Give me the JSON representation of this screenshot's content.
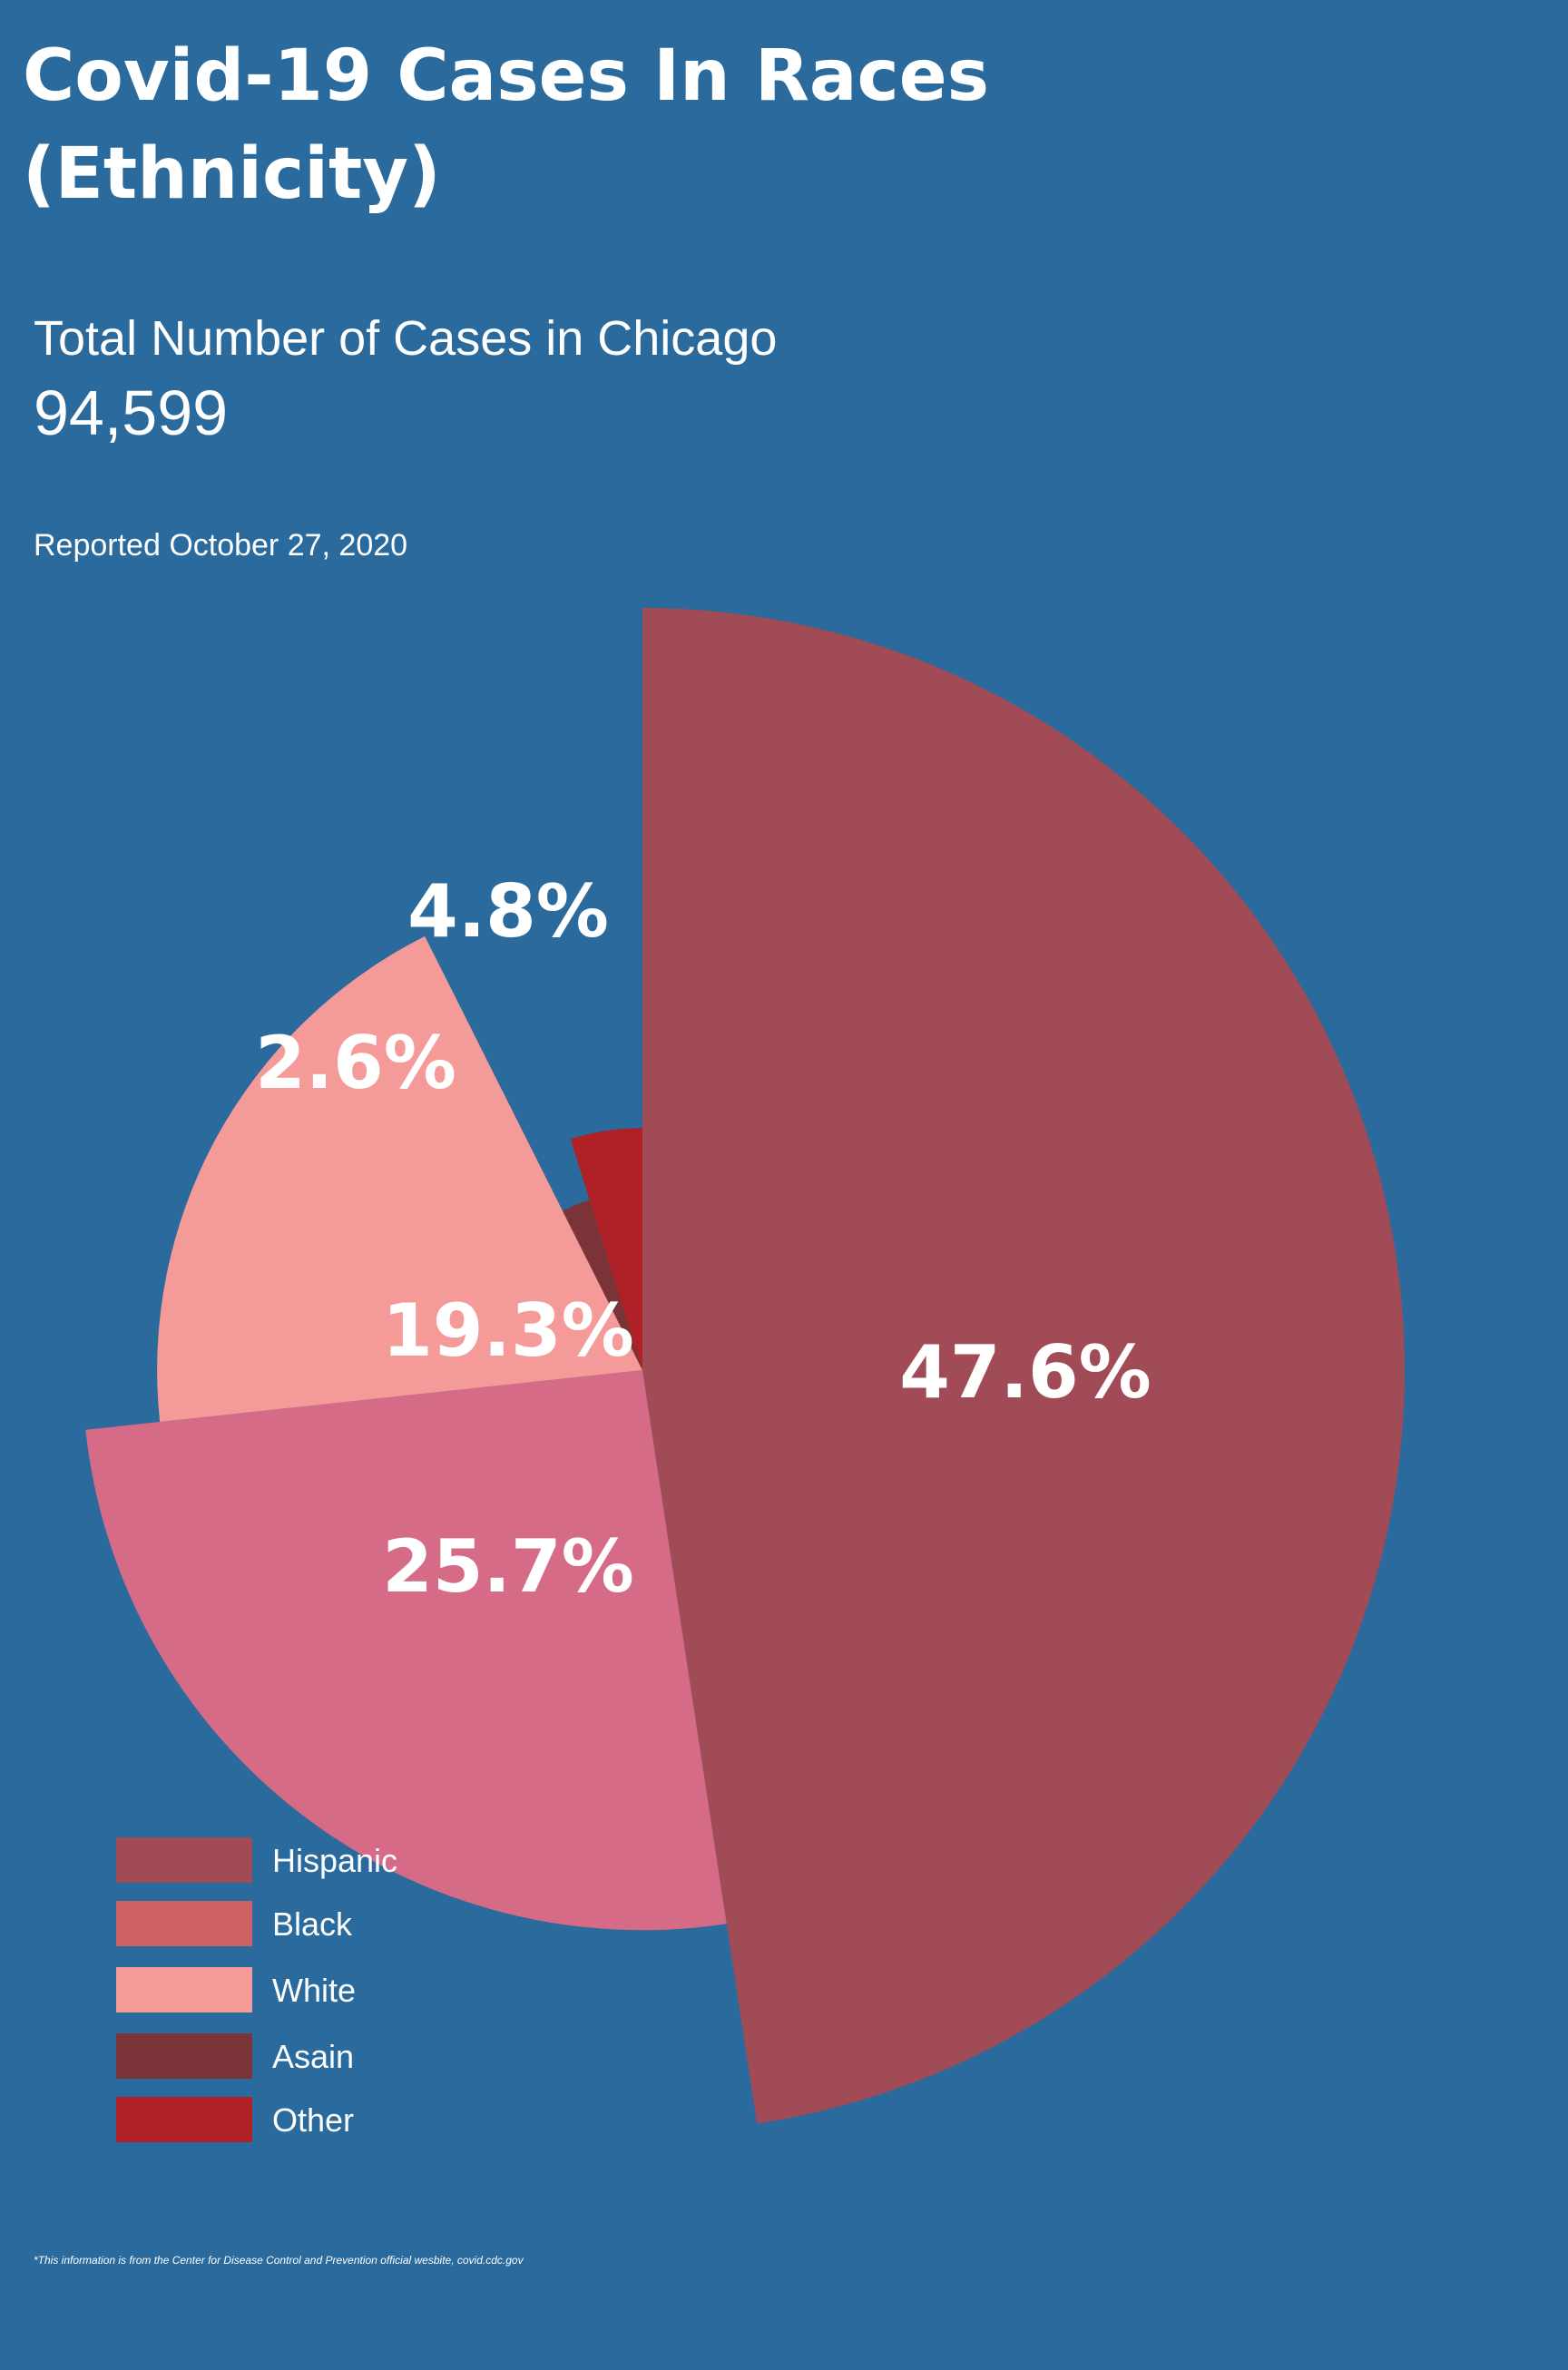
{
  "header": {
    "title_line1": "Covid-19 Cases In Races",
    "title_line2": "(Ethnicity)",
    "subtitle": "Total Number of Cases in Chicago",
    "total": "94,599",
    "reported": "Reported October 27, 2020"
  },
  "chart_data": {
    "type": "pie",
    "style": "variable-radius",
    "title": "Covid-19 Cases In Races (Ethnicity)",
    "slices": [
      {
        "name": "Hispanic",
        "value": 47.6,
        "label": "47.6%",
        "color": "#a04b55"
      },
      {
        "name": "Black",
        "value": 25.7,
        "label": "25.7%",
        "color": "#d56b86"
      },
      {
        "name": "White",
        "value": 19.3,
        "label": "19.3%",
        "color": "#f49a99"
      },
      {
        "name": "Asain",
        "value": 2.6,
        "label": "2.6%",
        "color": "#7a3337"
      },
      {
        "name": "Other",
        "value": 4.8,
        "label": "4.8%",
        "color": "#b02027"
      }
    ],
    "legend_position": "bottom-left"
  },
  "legend": [
    {
      "label": "Hispanic",
      "color": "#a04b55"
    },
    {
      "label": "Black",
      "color": "#cf6166"
    },
    {
      "label": "White",
      "color": "#f49a99"
    },
    {
      "label": "Asain",
      "color": "#7a3337"
    },
    {
      "label": "Other",
      "color": "#b02027"
    }
  ],
  "footnote": "*This information is from the Center for Disease Control and Prevention official wesbite, covid.cdc.gov"
}
